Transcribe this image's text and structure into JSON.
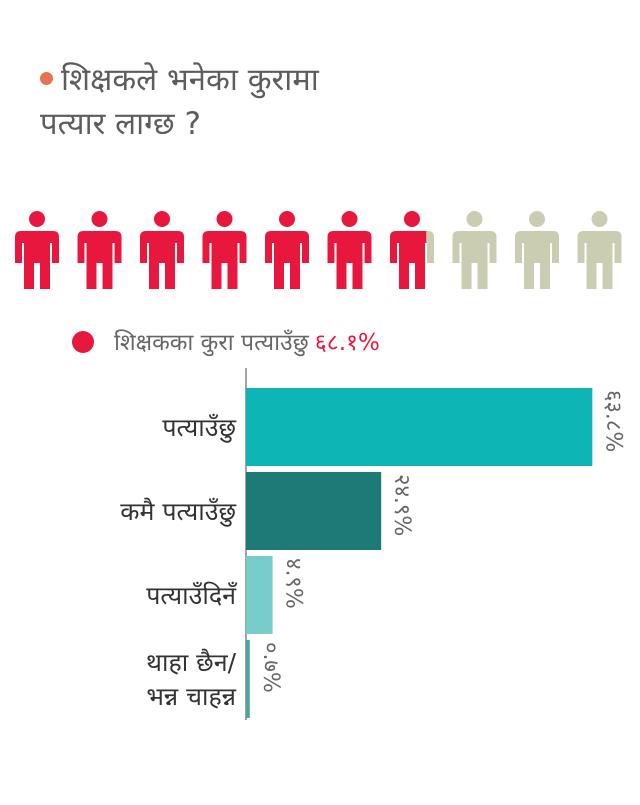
{
  "title": {
    "line1": "शिक्षकले भनेका कुरामा",
    "line2": "पत्यार लाग्छ ?",
    "dot_color": "#e8734f"
  },
  "pictogram": {
    "total": 10,
    "filled_fraction": 0.681,
    "filled_color": "#e8173e",
    "empty_color": "#cbcdb2",
    "icon": "person-icon"
  },
  "legend": {
    "label": "शिक्षकका कुरा पत्याउँछु",
    "value": "६८.१%",
    "dot_color": "#e8173e",
    "value_color": "#e8173e"
  },
  "chart_data": {
    "type": "bar",
    "orientation": "horizontal",
    "categories": [
      [
        "पत्याउँछु"
      ],
      [
        "कमै पत्याउँछु"
      ],
      [
        "पत्याउँदिनँ"
      ],
      [
        "थाहा छैन/",
        "भन्न चाहन्न"
      ]
    ],
    "values": [
      63.8,
      24.9,
      4.9,
      0.7
    ],
    "value_labels": [
      "६३.८%",
      "२४.९%",
      "४.९%",
      "०.७%"
    ],
    "colors": [
      "#0db6b4",
      "#1e7a77",
      "#78cdca",
      "#4ea5a2"
    ],
    "xlim": [
      0,
      70
    ]
  }
}
